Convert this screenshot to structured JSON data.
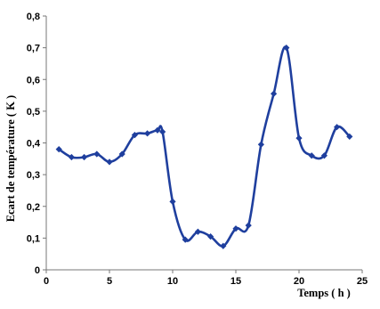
{
  "chart_data": {
    "type": "line",
    "title": "",
    "xlabel": "Temps ( h )",
    "ylabel": "Ecart de température ( K )",
    "xlim": [
      0,
      25
    ],
    "ylim": [
      0,
      0.8
    ],
    "x_ticks": [
      0,
      5,
      10,
      15,
      20,
      25
    ],
    "y_ticks": [
      0,
      0.1,
      0.2,
      0.3,
      0.4,
      0.5,
      0.6,
      0.7,
      0.8
    ],
    "x_tick_labels": [
      "0",
      "5",
      "10",
      "15",
      "20",
      "25"
    ],
    "y_tick_labels": [
      "0",
      "0,1",
      "0,2",
      "0,3",
      "0,4",
      "0,5",
      "0,6",
      "0,7",
      "0,8"
    ],
    "grid": false,
    "legend": "none",
    "series": [
      {
        "color": "#1f3f9e",
        "marker": "diamond",
        "x": [
          1,
          2,
          3,
          4,
          5,
          6,
          7,
          8,
          8.8,
          9.2,
          10,
          11,
          12,
          13,
          14,
          15,
          16,
          17,
          18,
          19,
          20,
          21,
          22,
          23,
          24
        ],
        "y": [
          0.38,
          0.355,
          0.355,
          0.365,
          0.34,
          0.365,
          0.425,
          0.43,
          0.44,
          0.435,
          0.215,
          0.095,
          0.12,
          0.105,
          0.075,
          0.13,
          0.14,
          0.395,
          0.555,
          0.7,
          0.415,
          0.36,
          0.36,
          0.45,
          0.42
        ]
      }
    ]
  }
}
